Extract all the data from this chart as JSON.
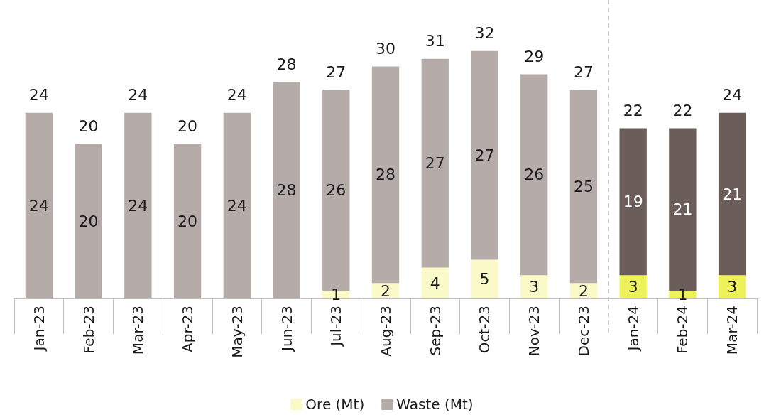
{
  "chart_data": {
    "type": "bar",
    "stacked": true,
    "tick_labels": "x",
    "legend": "bottom",
    "categories": [
      "Jan-23",
      "Feb-23",
      "Mar-23",
      "Apr-23",
      "May-23",
      "Jun-23",
      "Jul-23",
      "Aug-23",
      "Sep-23",
      "Oct-23",
      "Nov-23",
      "Dec-23",
      "Jan-24",
      "Feb-24",
      "Mar-24"
    ],
    "series": [
      {
        "name": "Ore (Mt)",
        "color": "#fafac8",
        "colors": [
          "#fafac8",
          "#fafac8",
          "#fafac8",
          "#fafac8",
          "#fafac8",
          "#fafac8",
          "#fafac8",
          "#fafac8",
          "#fafac8",
          "#fafac8",
          "#fafac8",
          "#fafac8",
          "#eef25a",
          "#eef25a",
          "#eef25a"
        ],
        "values": [
          null,
          null,
          null,
          null,
          null,
          null,
          1,
          2,
          4,
          5,
          3,
          2,
          3,
          1,
          3
        ],
        "value_labels": [
          null,
          null,
          null,
          null,
          null,
          null,
          "1",
          "2",
          "4",
          "5",
          "3",
          "2",
          "3",
          "1",
          "3"
        ]
      },
      {
        "name": "Waste (Mt)",
        "color": "#b5aca9",
        "colors": [
          "#b5aca9",
          "#b5aca9",
          "#b5aca9",
          "#b5aca9",
          "#b5aca9",
          "#b5aca9",
          "#b5aca9",
          "#b5aca9",
          "#b5aca9",
          "#b5aca9",
          "#b5aca9",
          "#b5aca9",
          "#6b5e5a",
          "#6b5e5a",
          "#6b5e5a"
        ],
        "values": [
          24,
          20,
          24,
          20,
          24,
          28,
          26,
          28,
          27,
          27,
          26,
          25,
          19,
          21,
          21
        ],
        "value_labels": [
          "24",
          "20",
          "24",
          "20",
          "24",
          "28",
          "26",
          "28",
          "27",
          "27",
          "26",
          "25",
          "19",
          "21",
          "21"
        ]
      }
    ],
    "totals": [
      "24",
      "20",
      "24",
      "20",
      "24",
      "28",
      "27",
      "30",
      "31",
      "32",
      "29",
      "27",
      "22",
      "22",
      "24"
    ]
  }
}
